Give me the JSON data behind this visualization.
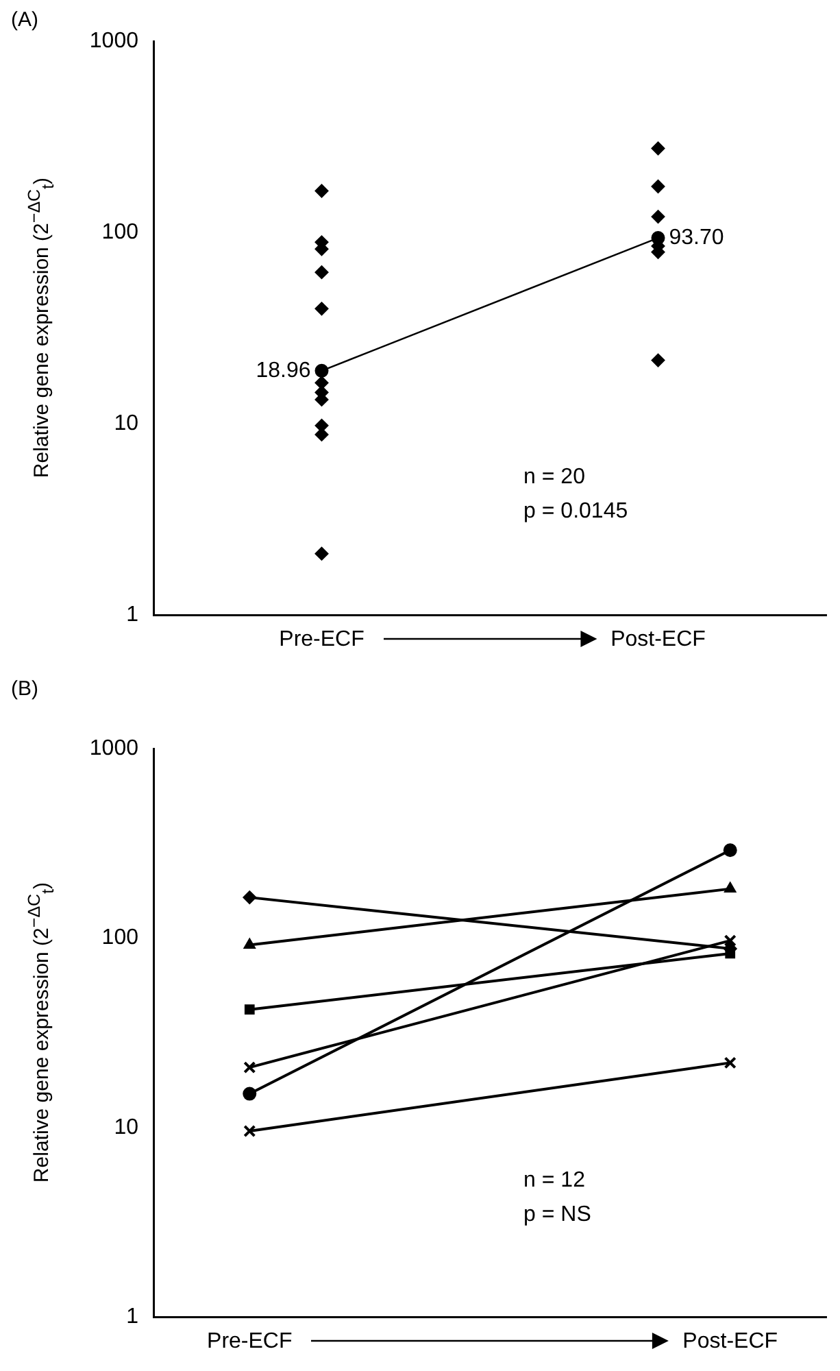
{
  "chart_data": [
    {
      "type": "scatter",
      "title": "(A)",
      "ylabel": "Relative gene expression (2$^{−ΔC}$$_{t}$)",
      "categories": [
        "Pre-ECF",
        "Post-ECF"
      ],
      "series": [
        {
          "type": "scatter",
          "marker": "diamond",
          "color": "#000000",
          "x": [
            "Pre-ECF",
            "Pre-ECF",
            "Pre-ECF",
            "Pre-ECF",
            "Pre-ECF",
            "Pre-ECF",
            "Pre-ECF",
            "Pre-ECF",
            "Pre-ECF",
            "Pre-ECF",
            "Pre-ECF",
            "Post-ECF",
            "Post-ECF",
            "Post-ECF",
            "Post-ECF",
            "Post-ECF",
            "Post-ECF"
          ],
          "values": [
            165,
            89,
            82,
            62,
            40,
            16.4,
            14.6,
            13.4,
            9.8,
            8.8,
            2.1,
            275,
            174,
            121,
            85,
            79,
            21.5
          ]
        },
        {
          "type": "line",
          "marker": "circle",
          "color": "#000000",
          "values": [
            18.96,
            93.7
          ],
          "value_labels": [
            "18.96",
            "93.70"
          ]
        }
      ],
      "ylim": [
        1,
        1000
      ],
      "yticks": [
        1,
        10,
        100,
        1000
      ],
      "log": true,
      "annotations": [
        "n = 20",
        "p = 0.0145"
      ]
    },
    {
      "type": "line",
      "title": "(B)",
      "ylabel": "Relative gene expression (2$^{−ΔC}$$_{t}$)",
      "categories": [
        "Pre-ECF",
        "Post-ECF"
      ],
      "series": [
        {
          "marker": "diamond",
          "color": "#000000",
          "values": [
            164,
            88
          ]
        },
        {
          "marker": "triangle",
          "color": "#000000",
          "values": [
            92,
            182
          ]
        },
        {
          "marker": "square",
          "color": "#000000",
          "values": [
            42,
            83
          ]
        },
        {
          "marker": "cross",
          "color": "#000000",
          "values": [
            20.8,
            97
          ]
        },
        {
          "marker": "circle",
          "color": "#000000",
          "values": [
            15.1,
            291
          ]
        },
        {
          "marker": "cross",
          "color": "#000000",
          "values": [
            9.6,
            22
          ]
        }
      ],
      "ylim": [
        1,
        1000
      ],
      "yticks": [
        1,
        10,
        100,
        1000
      ],
      "log": true,
      "annotations": [
        "n = 12",
        "p = NS"
      ]
    }
  ]
}
